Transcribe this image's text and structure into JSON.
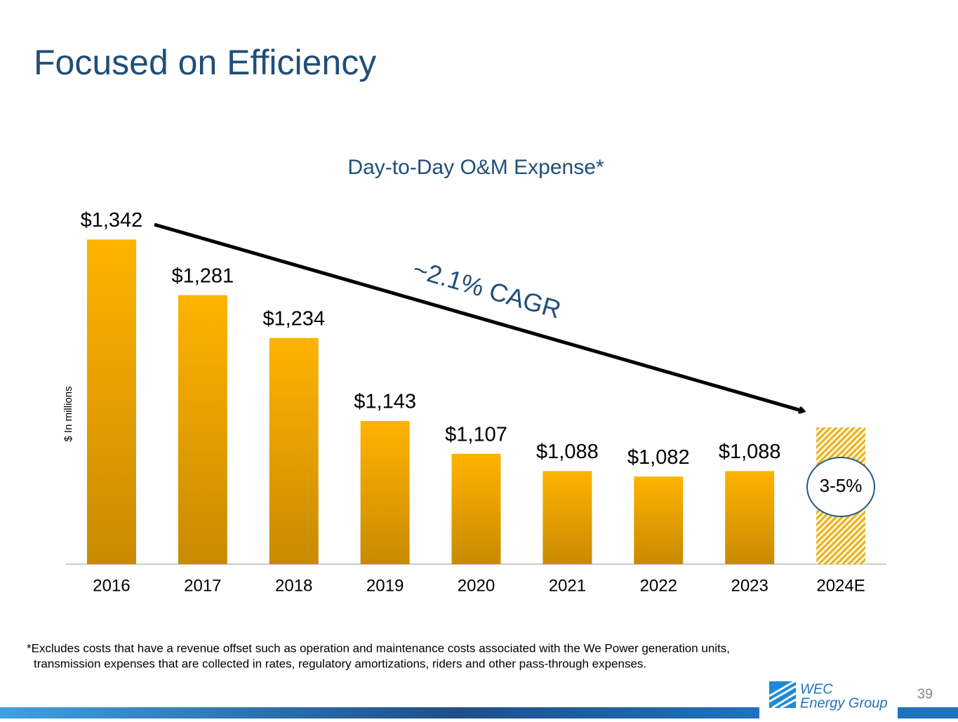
{
  "title": "Focused on Efficiency",
  "chart_data": {
    "type": "bar",
    "title": "Day-to-Day O&M Expense*",
    "y_label": "$ In millions",
    "categories": [
      "2016",
      "2017",
      "2018",
      "2019",
      "2020",
      "2021",
      "2022",
      "2023",
      "2024E"
    ],
    "values": [
      1342,
      1281,
      1234,
      1143,
      1107,
      1088,
      1082,
      1088,
      1136
    ],
    "value_labels": [
      "$1,342",
      "$1,281",
      "$1,234",
      "$1,143",
      "$1,107",
      "$1,088",
      "$1,082",
      "$1,088",
      null
    ],
    "hatched": [
      false,
      false,
      false,
      false,
      false,
      false,
      false,
      false,
      true
    ],
    "color": "#f2a900",
    "ylim": [
      986,
      1400
    ],
    "annotations": [
      "~2.1% CAGR",
      "3-5%"
    ]
  },
  "footnote": [
    "*Excludes costs that have a revenue offset such as operation and maintenance costs associated with the We Power generation units,",
    "transmission expenses that are collected in rates, regulatory amortizations, riders and other pass-through expenses."
  ],
  "logo": [
    "WEC",
    "Energy Group"
  ],
  "page_number": "39"
}
